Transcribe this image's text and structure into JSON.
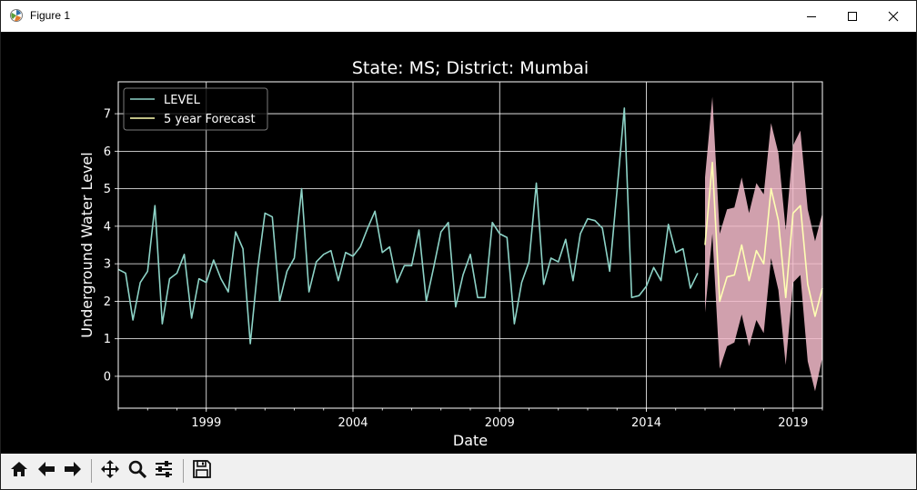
{
  "window": {
    "title": "Figure 1"
  },
  "toolbar": {
    "buttons": [
      {
        "name": "home-button",
        "icon": "home-icon"
      },
      {
        "name": "back-button",
        "icon": "arrow-left-icon"
      },
      {
        "name": "forward-button",
        "icon": "arrow-right-icon"
      },
      {
        "name": "pan-button",
        "icon": "move-icon"
      },
      {
        "name": "zoom-button",
        "icon": "magnifier-icon"
      },
      {
        "name": "configure-subplots-button",
        "icon": "sliders-icon"
      },
      {
        "name": "save-button",
        "icon": "floppy-disk-icon"
      }
    ]
  },
  "chart_data": {
    "type": "line",
    "title": "State: MS;  District: Mumbai",
    "xlabel": "Date",
    "ylabel": "Underground Water Level",
    "xlim": [
      "1996-01-01",
      "2020-01-01"
    ],
    "ylim": [
      -0.85,
      7.85
    ],
    "x_ticks": [
      "1999",
      "2004",
      "2009",
      "2014",
      "2019"
    ],
    "y_ticks": [
      0,
      1,
      2,
      3,
      4,
      5,
      6,
      7
    ],
    "grid": true,
    "legend_position": "top-left",
    "colors": {
      "level": "#8dd3c7",
      "forecast": "#ffffb3",
      "band": "#f4bccb",
      "background": "#000000",
      "text": "#ffffff"
    },
    "series": [
      {
        "name": "LEVEL",
        "x": [
          "1996-01",
          "1996-04",
          "1996-07",
          "1996-10",
          "1997-01",
          "1997-04",
          "1997-07",
          "1997-10",
          "1998-01",
          "1998-04",
          "1998-07",
          "1998-10",
          "1999-01",
          "1999-04",
          "1999-07",
          "1999-10",
          "2000-01",
          "2000-04",
          "2000-07",
          "2000-10",
          "2001-01",
          "2001-04",
          "2001-07",
          "2001-10",
          "2002-01",
          "2002-04",
          "2002-07",
          "2002-10",
          "2003-01",
          "2003-04",
          "2003-07",
          "2003-10",
          "2004-01",
          "2004-04",
          "2004-07",
          "2004-10",
          "2005-01",
          "2005-04",
          "2005-07",
          "2005-10",
          "2006-01",
          "2006-04",
          "2006-07",
          "2006-10",
          "2007-01",
          "2007-04",
          "2007-07",
          "2007-10",
          "2008-01",
          "2008-04",
          "2008-07",
          "2008-10",
          "2009-01",
          "2009-04",
          "2009-07",
          "2009-10",
          "2010-01",
          "2010-04",
          "2010-07",
          "2010-10",
          "2011-01",
          "2011-04",
          "2011-07",
          "2011-10",
          "2012-01",
          "2012-04",
          "2012-07",
          "2012-10",
          "2013-01",
          "2013-04",
          "2013-07",
          "2013-10",
          "2014-01",
          "2014-04",
          "2014-07",
          "2014-10",
          "2015-01",
          "2015-04",
          "2015-07",
          "2015-10"
        ],
        "values": [
          2.85,
          2.75,
          1.5,
          2.5,
          2.8,
          4.55,
          1.4,
          2.6,
          2.75,
          3.25,
          1.55,
          2.6,
          2.5,
          3.1,
          2.6,
          2.25,
          3.85,
          3.4,
          0.87,
          2.85,
          4.35,
          4.25,
          2.0,
          2.8,
          3.15,
          5.0,
          2.25,
          3.05,
          3.25,
          3.35,
          2.55,
          3.3,
          3.2,
          3.45,
          3.95,
          4.4,
          3.3,
          3.45,
          2.5,
          2.95,
          2.95,
          3.9,
          2.0,
          2.9,
          3.85,
          4.1,
          1.85,
          2.7,
          3.25,
          2.1,
          2.1,
          4.1,
          3.8,
          3.7,
          1.4,
          2.5,
          3.05,
          5.15,
          2.45,
          3.15,
          3.05,
          3.65,
          2.55,
          3.8,
          4.2,
          4.15,
          3.95,
          2.8,
          4.95,
          7.15,
          2.1,
          2.15,
          2.4,
          2.9,
          2.55,
          4.05,
          3.3,
          3.4,
          2.35,
          2.75
        ]
      },
      {
        "name": "5 year Forecast",
        "x": [
          "2016-01",
          "2016-04",
          "2016-07",
          "2016-10",
          "2017-01",
          "2017-04",
          "2017-07",
          "2017-10",
          "2018-01",
          "2018-04",
          "2018-07",
          "2018-10",
          "2019-01",
          "2019-04",
          "2019-07",
          "2019-10",
          "2020-01"
        ],
        "values": [
          3.5,
          5.7,
          2.0,
          2.65,
          2.7,
          3.5,
          2.55,
          3.35,
          3.0,
          5.0,
          4.15,
          2.1,
          4.35,
          4.55,
          2.45,
          1.6,
          2.35
        ],
        "lower": [
          1.7,
          3.8,
          0.2,
          0.8,
          0.9,
          1.65,
          0.8,
          1.5,
          1.15,
          3.15,
          2.3,
          0.3,
          2.5,
          2.7,
          0.4,
          -0.4,
          0.5
        ],
        "upper": [
          5.3,
          7.45,
          3.8,
          4.45,
          4.5,
          5.3,
          4.35,
          5.15,
          4.85,
          6.75,
          5.95,
          3.9,
          6.15,
          6.55,
          4.45,
          3.6,
          4.35
        ]
      }
    ]
  }
}
